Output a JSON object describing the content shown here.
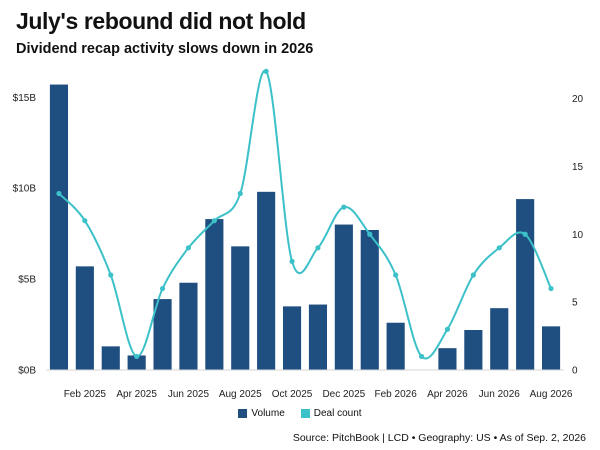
{
  "title": "July's rebound did not hold",
  "subtitle": "Dividend recap activity slows down in 2026",
  "source": "Source: PitchBook | LCD • Geography: US • As of Sep. 2, 2026",
  "colors": {
    "volume": "#1f4e80",
    "deal_count": "#3cc1c9"
  },
  "chart_data": {
    "type": "bar",
    "categories": [
      "Jan 2025",
      "Feb 2025",
      "Mar 2025",
      "Apr 2025",
      "May 2025",
      "Jun 2025",
      "Jul 2025",
      "Aug 2025",
      "Sep 2025",
      "Oct 2025",
      "Nov 2025",
      "Dec 2025",
      "Jan 2026",
      "Feb 2026",
      "Mar 2026",
      "Apr 2026",
      "May 2026",
      "Jun 2026",
      "Jul 2026",
      "Aug 2026"
    ],
    "x_tick_labels": [
      "",
      "Feb 2025",
      "",
      "Apr 2025",
      "",
      "Jun 2025",
      "",
      "Aug 2025",
      "",
      "Oct 2025",
      "",
      "Dec 2025",
      "",
      "Feb 2026",
      "",
      "Apr 2026",
      "",
      "Jun 2026",
      "",
      "Aug 2026"
    ],
    "series": [
      {
        "name": "Volume",
        "type": "bar",
        "axis": "left",
        "values": [
          15.7,
          5.7,
          1.3,
          0.8,
          3.9,
          4.8,
          8.3,
          6.8,
          9.8,
          3.5,
          3.6,
          8.0,
          7.7,
          2.6,
          0.0,
          1.2,
          2.2,
          3.4,
          9.4,
          2.4
        ]
      },
      {
        "name": "Deal count",
        "type": "line",
        "axis": "right",
        "values": [
          13,
          11,
          7,
          1,
          6,
          9,
          11,
          13,
          22,
          8,
          9,
          12,
          10,
          7,
          1,
          3,
          7,
          9,
          10,
          6
        ]
      }
    ],
    "y_left": {
      "ticks": [
        0,
        5,
        10,
        15
      ],
      "tick_labels": [
        "$0B",
        "$5B",
        "$10B",
        "$15B"
      ],
      "range": [
        0,
        16.5
      ]
    },
    "y_right": {
      "ticks": [
        0,
        5,
        10,
        15,
        20
      ],
      "tick_labels": [
        "0",
        "5",
        "10",
        "15",
        "20"
      ],
      "range": [
        0,
        22.1
      ]
    },
    "grid": false,
    "legend_position": "bottom-center"
  }
}
